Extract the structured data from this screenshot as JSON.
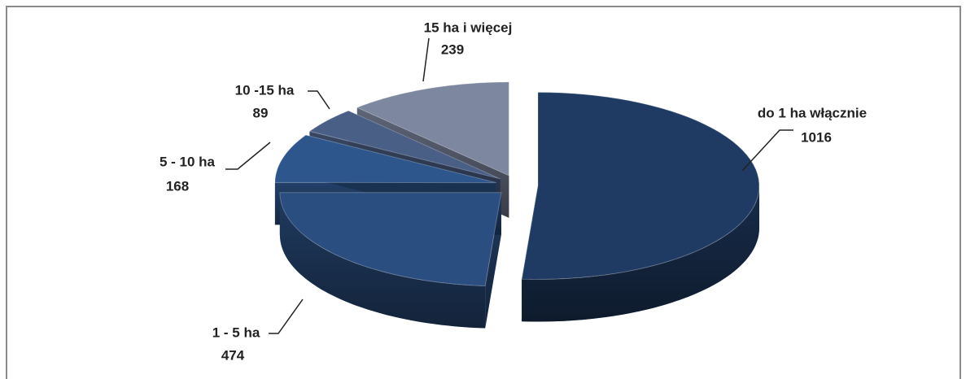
{
  "chart_data": {
    "type": "pie3d",
    "categories": [
      "do 1 ha włącznie",
      "1 - 5 ha",
      "5 - 10 ha",
      "10 -15 ha",
      "15 ha i więcej"
    ],
    "values": [
      1016,
      474,
      168,
      89,
      239
    ],
    "colors": [
      "#1f3b63",
      "#2a4e80",
      "#2d568c",
      "#4a5f86",
      "#7d879f"
    ]
  }
}
